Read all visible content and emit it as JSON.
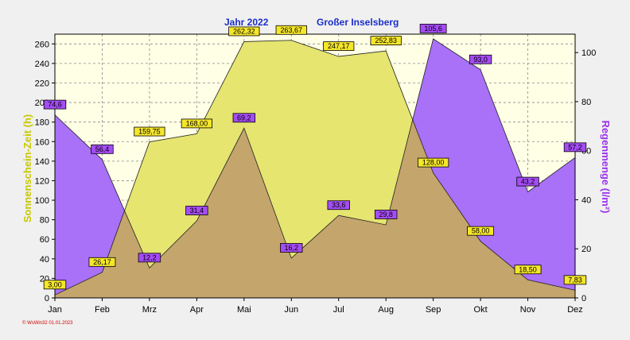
{
  "chart_data": {
    "type": "area",
    "title_year": "Jahr  2022",
    "title_location": "Großer Inselsberg",
    "categories": [
      "Jan",
      "Feb",
      "Mrz",
      "Apr",
      "Mai",
      "Jun",
      "Jul",
      "Aug",
      "Sep",
      "Okt",
      "Nov",
      "Dez"
    ],
    "ylabel": "Sonnenschein-Zeit  (h)",
    "y2label": "Regenmenge  (l/m²)",
    "ylim": [
      0,
      270
    ],
    "y2lim": [
      0,
      107.5
    ],
    "yticks": [
      0,
      20,
      40,
      60,
      80,
      100,
      120,
      140,
      160,
      180,
      200,
      220,
      240,
      260
    ],
    "y2ticks": [
      0,
      20,
      40,
      60,
      80,
      100
    ],
    "grid": true,
    "series": [
      {
        "axis": "left",
        "color": "#e5e570",
        "values": [
          3.0,
          26.17,
          159.75,
          168.0,
          262.32,
          263.67,
          247.17,
          252.83,
          128.0,
          58.0,
          18.5,
          7.83
        ],
        "labels": [
          "3,00",
          "26,17",
          "159,75",
          "168,00",
          "262,32",
          "263,67",
          "247,17",
          "252,83",
          "128,00",
          "58,00",
          "18,50",
          "7,83"
        ],
        "label_color": "#f5e62a"
      },
      {
        "axis": "right",
        "color": "#a970f8",
        "values": [
          74.6,
          56.4,
          12.2,
          31.4,
          69.2,
          16.2,
          33.6,
          29.8,
          105.6,
          93.0,
          43.2,
          57.2
        ],
        "labels": [
          "74,6",
          "56,4",
          "12,2",
          "31,4",
          "69,2",
          "16,2",
          "33,6",
          "29,8",
          "105,6",
          "93,0",
          "43,2",
          "57,2"
        ],
        "label_color": "#a54cf5"
      }
    ],
    "overlap_color": "#c4a56c",
    "footer": "© WsWin32  01.01.2023"
  }
}
